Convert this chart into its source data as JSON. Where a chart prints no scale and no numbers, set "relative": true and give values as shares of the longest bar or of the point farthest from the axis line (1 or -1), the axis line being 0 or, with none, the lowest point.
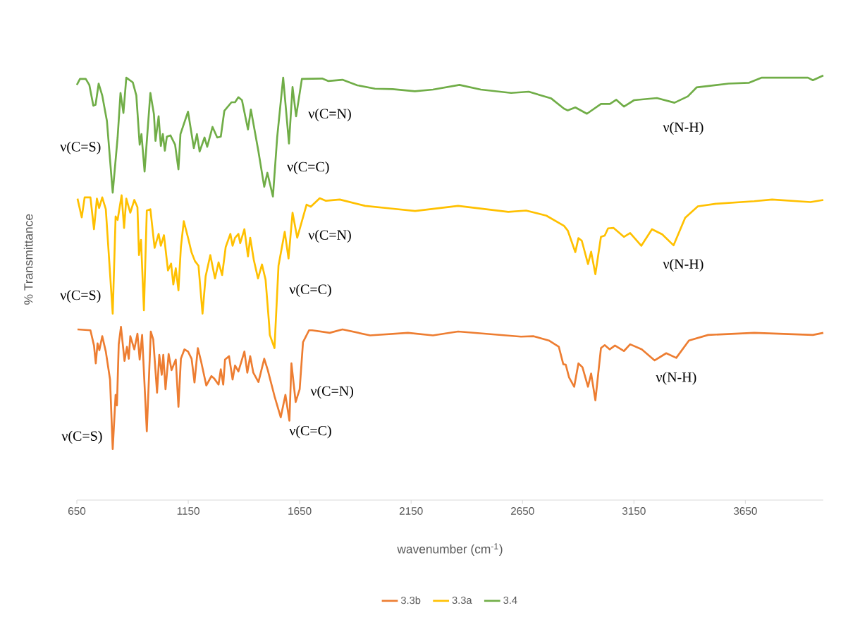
{
  "chart_data": {
    "type": "line",
    "relative": true,
    "xlabel": "wavenumber (cm$^{-1}$)",
    "ylabel": "% Transmittance",
    "xlim": [
      650,
      4000
    ],
    "xticks": [
      650,
      1150,
      1650,
      2150,
      2650,
      3150,
      3650
    ],
    "legend": "bottom",
    "series": [
      {
        "name": "3.3b",
        "color": "#ed7d31",
        "x": [
          653,
          711,
          727,
          735,
          743,
          751,
          764,
          780,
          799,
          811,
          824,
          830,
          838,
          848,
          864,
          875,
          883,
          890,
          908,
          922,
          932,
          943,
          964,
          982,
          993,
          1010,
          1020,
          1031,
          1038,
          1048,
          1062,
          1075,
          1094,
          1106,
          1117,
          1133,
          1149,
          1165,
          1178,
          1193,
          1207,
          1231,
          1254,
          1267,
          1286,
          1296,
          1307,
          1315,
          1333,
          1349,
          1360,
          1375,
          1402,
          1415,
          1428,
          1442,
          1465,
          1491,
          1507,
          1537,
          1565,
          1586,
          1604,
          1613,
          1632,
          1650,
          1665,
          1692,
          1706,
          1785,
          1842,
          1966,
          2136,
          2248,
          2361,
          2643,
          2700,
          2768,
          2813,
          2833,
          2844,
          2859,
          2882,
          2901,
          2919,
          2944,
          2958,
          2977,
          3002,
          3019,
          3041,
          3065,
          3105,
          3133,
          3185,
          3243,
          3295,
          3340,
          3397,
          3483,
          3690,
          3953,
          4000
        ],
        "values": [
          0.402,
          0.4,
          0.364,
          0.322,
          0.369,
          0.353,
          0.386,
          0.35,
          0.284,
          0.12,
          0.248,
          0.223,
          0.367,
          0.408,
          0.328,
          0.361,
          0.333,
          0.386,
          0.355,
          0.392,
          0.331,
          0.389,
          0.162,
          0.397,
          0.378,
          0.253,
          0.342,
          0.295,
          0.342,
          0.261,
          0.344,
          0.306,
          0.331,
          0.22,
          0.333,
          0.355,
          0.35,
          0.333,
          0.277,
          0.358,
          0.328,
          0.27,
          0.292,
          0.286,
          0.272,
          0.308,
          0.272,
          0.331,
          0.339,
          0.284,
          0.317,
          0.303,
          0.35,
          0.3,
          0.339,
          0.3,
          0.278,
          0.333,
          0.306,
          0.245,
          0.195,
          0.248,
          0.187,
          0.322,
          0.231,
          0.261,
          0.372,
          0.4,
          0.4,
          0.394,
          0.402,
          0.388,
          0.394,
          0.388,
          0.397,
          0.385,
          0.386,
          0.376,
          0.361,
          0.32,
          0.319,
          0.289,
          0.267,
          0.322,
          0.313,
          0.267,
          0.298,
          0.235,
          0.358,
          0.365,
          0.355,
          0.364,
          0.351,
          0.367,
          0.355,
          0.329,
          0.346,
          0.335,
          0.376,
          0.389,
          0.394,
          0.389,
          0.394
        ]
      },
      {
        "name": "3.3a",
        "color": "#ffc000",
        "x": [
          653,
          672,
          685,
          711,
          727,
          740,
          750,
          764,
          780,
          811,
          824,
          833,
          851,
          862,
          872,
          890,
          908,
          922,
          929,
          938,
          951,
          964,
          980,
          999,
          1017,
          1027,
          1041,
          1059,
          1073,
          1083,
          1094,
          1106,
          1117,
          1130,
          1149,
          1165,
          1180,
          1196,
          1214,
          1228,
          1249,
          1270,
          1286,
          1302,
          1318,
          1339,
          1349,
          1360,
          1375,
          1383,
          1402,
          1418,
          1428,
          1444,
          1463,
          1481,
          1497,
          1513,
          1516,
          1537,
          1555,
          1583,
          1600,
          1618,
          1639,
          1681,
          1700,
          1740,
          1768,
          1830,
          1944,
          2056,
          2168,
          2361,
          2586,
          2666,
          2757,
          2836,
          2853,
          2887,
          2901,
          2916,
          2944,
          2958,
          2977,
          3002,
          3019,
          3034,
          3059,
          3105,
          3133,
          3183,
          3231,
          3277,
          3328,
          3380,
          3437,
          3518,
          3690,
          3770,
          3942,
          4000
        ],
        "values": [
          0.71,
          0.666,
          0.713,
          0.713,
          0.638,
          0.71,
          0.688,
          0.713,
          0.685,
          0.439,
          0.668,
          0.66,
          0.718,
          0.641,
          0.71,
          0.677,
          0.707,
          0.69,
          0.577,
          0.613,
          0.447,
          0.682,
          0.685,
          0.594,
          0.627,
          0.599,
          0.624,
          0.541,
          0.557,
          0.508,
          0.546,
          0.494,
          0.596,
          0.657,
          0.618,
          0.583,
          0.563,
          0.552,
          0.439,
          0.527,
          0.577,
          0.522,
          0.56,
          0.53,
          0.596,
          0.627,
          0.599,
          0.618,
          0.627,
          0.605,
          0.638,
          0.574,
          0.618,
          0.566,
          0.522,
          0.555,
          0.519,
          0.414,
          0.389,
          0.358,
          0.552,
          0.632,
          0.569,
          0.677,
          0.618,
          0.696,
          0.691,
          0.711,
          0.705,
          0.708,
          0.693,
          0.687,
          0.681,
          0.693,
          0.679,
          0.682,
          0.67,
          0.646,
          0.635,
          0.584,
          0.617,
          0.611,
          0.556,
          0.585,
          0.532,
          0.62,
          0.623,
          0.64,
          0.641,
          0.62,
          0.629,
          0.599,
          0.638,
          0.626,
          0.6,
          0.665,
          0.692,
          0.698,
          0.704,
          0.708,
          0.702,
          0.707
        ]
      },
      {
        "name": "3.4",
        "color": "#70ad47",
        "x": [
          650,
          664,
          690,
          706,
          724,
          734,
          748,
          764,
          785,
          811,
          833,
          846,
          859,
          872,
          901,
          917,
          932,
          940,
          954,
          980,
          996,
          1003,
          1017,
          1027,
          1036,
          1045,
          1054,
          1070,
          1091,
          1106,
          1115,
          1149,
          1175,
          1189,
          1201,
          1223,
          1235,
          1259,
          1280,
          1296,
          1312,
          1344,
          1360,
          1375,
          1391,
          1418,
          1431,
          1465,
          1491,
          1505,
          1530,
          1549,
          1576,
          1602,
          1618,
          1634,
          1660,
          1751,
          1779,
          1842,
          1909,
          1988,
          2067,
          2167,
          2248,
          2367,
          2463,
          2599,
          2678,
          2779,
          2836,
          2853,
          2887,
          2939,
          3002,
          3042,
          3071,
          3105,
          3151,
          3253,
          3332,
          3392,
          3431,
          3575,
          3667,
          3724,
          3931,
          3953,
          4000
        ],
        "values": [
          0.978,
          0.992,
          0.992,
          0.978,
          0.929,
          0.931,
          0.981,
          0.953,
          0.893,
          0.724,
          0.854,
          0.959,
          0.912,
          0.995,
          0.984,
          0.953,
          0.837,
          0.862,
          0.774,
          0.959,
          0.909,
          0.846,
          0.904,
          0.834,
          0.862,
          0.823,
          0.856,
          0.859,
          0.837,
          0.779,
          0.862,
          0.915,
          0.829,
          0.862,
          0.821,
          0.854,
          0.832,
          0.879,
          0.854,
          0.856,
          0.917,
          0.937,
          0.937,
          0.949,
          0.942,
          0.873,
          0.92,
          0.821,
          0.738,
          0.771,
          0.715,
          0.854,
          0.995,
          0.84,
          0.973,
          0.904,
          0.992,
          0.993,
          0.987,
          0.99,
          0.977,
          0.969,
          0.968,
          0.963,
          0.967,
          0.978,
          0.967,
          0.959,
          0.962,
          0.946,
          0.922,
          0.918,
          0.925,
          0.91,
          0.933,
          0.933,
          0.943,
          0.927,
          0.942,
          0.947,
          0.936,
          0.951,
          0.972,
          0.981,
          0.983,
          0.995,
          0.995,
          0.989,
          1
        ]
      }
    ],
    "annotations": [
      "ν(C=S)",
      "ν(C=C)",
      "ν(C=N)",
      "ν(N-H)",
      "ν(C=S)",
      "ν(C=C)",
      "ν(C=N)",
      "ν(N-H)",
      "ν(C=S)",
      "ν(C=C)",
      "ν(C=N)",
      "ν(N-H)"
    ]
  }
}
